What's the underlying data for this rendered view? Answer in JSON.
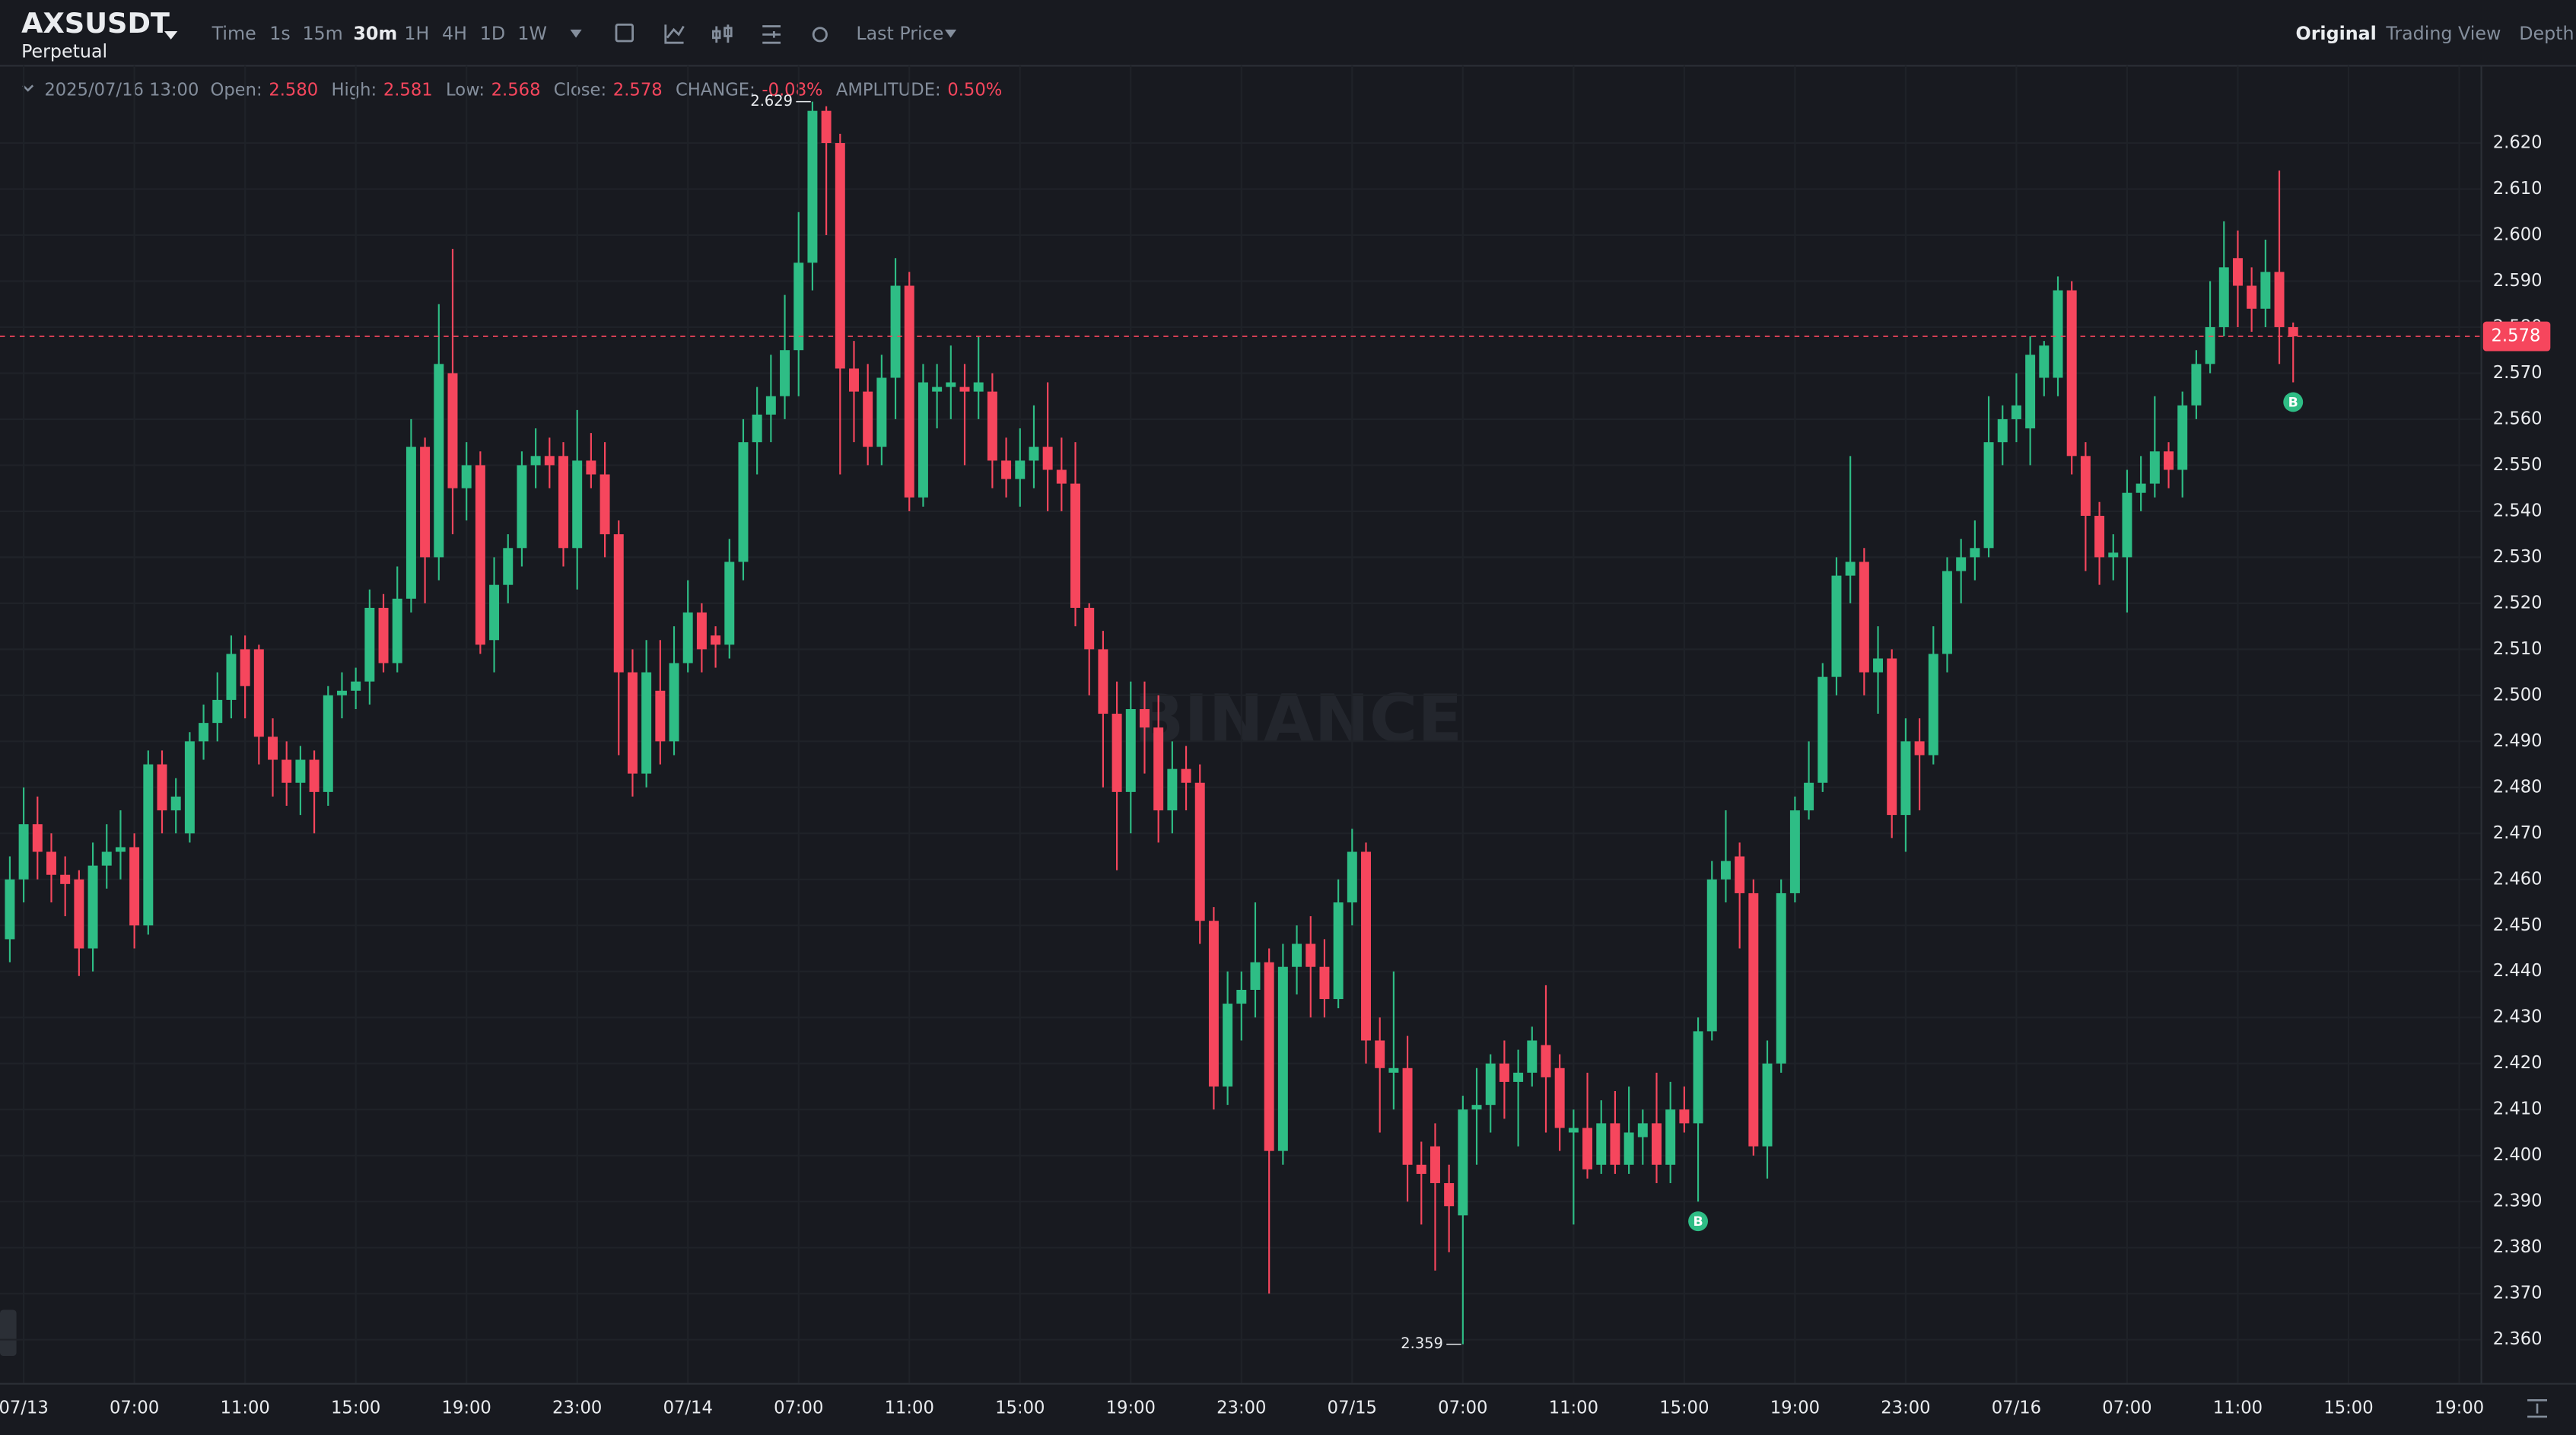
{
  "header": {
    "symbol": "AXSUSDT",
    "contract": "Perpetual",
    "intervals": [
      "Time",
      "1s",
      "15m",
      "30m",
      "1H",
      "4H",
      "1D",
      "1W"
    ],
    "price_type": "Last Price",
    "views": [
      "Original",
      "Trading View",
      "Depth"
    ]
  },
  "info": {
    "time": "2025/07/16 13:00",
    "fields": [
      {
        "label": "Open:",
        "value": "2.580"
      },
      {
        "label": "High:",
        "value": "2.581"
      },
      {
        "label": "Low:",
        "value": "2.568"
      },
      {
        "label": "Close:",
        "value": "2.578"
      },
      {
        "label": "CHANGE:",
        "value": "-0.08%"
      },
      {
        "label": "AMPLITUDE:",
        "value": "0.50%"
      }
    ]
  },
  "chart_data": {
    "type": "candlestick",
    "watermark": "BINANCE",
    "up_color": "#2ebd85",
    "down_color": "#f6465d",
    "grid": true,
    "open": [
      2.447,
      2.46,
      2.472,
      2.466,
      2.461,
      2.46,
      2.445,
      2.463,
      2.466,
      2.467,
      2.45,
      2.485,
      2.475,
      2.47,
      2.49,
      2.494,
      2.499,
      2.51,
      2.51,
      2.491,
      2.486,
      2.481,
      2.486,
      2.479,
      2.5,
      2.501,
      2.503,
      2.519,
      2.507,
      2.521,
      2.554,
      2.53,
      2.57,
      2.545,
      2.55,
      2.512,
      2.524,
      2.532,
      2.55,
      2.552,
      2.552,
      2.532,
      2.551,
      2.548,
      2.535,
      2.505,
      2.483,
      2.501,
      2.49,
      2.507,
      2.518,
      2.513,
      2.511,
      2.529,
      2.555,
      2.561,
      2.565,
      2.575,
      2.594,
      2.627,
      2.62,
      2.571,
      2.566,
      2.554,
      2.569,
      2.589,
      2.543,
      2.566,
      2.567,
      2.567,
      2.566,
      2.566,
      2.551,
      2.547,
      2.551,
      2.554,
      2.549,
      2.546,
      2.519,
      2.51,
      2.496,
      2.479,
      2.497,
      2.493,
      2.475,
      2.484,
      2.481,
      2.451,
      2.415,
      2.433,
      2.436,
      2.442,
      2.401,
      2.441,
      2.446,
      2.441,
      2.434,
      2.455,
      2.466,
      2.425,
      2.418,
      2.419,
      2.398,
      2.402,
      2.394,
      2.387,
      2.41,
      2.411,
      2.42,
      2.416,
      2.418,
      2.424,
      2.419,
      2.405,
      2.406,
      2.398,
      2.407,
      2.398,
      2.404,
      2.407,
      2.398,
      2.41,
      2.407,
      2.427,
      2.46,
      2.465,
      2.457,
      2.402,
      2.42,
      2.457,
      2.475,
      2.481,
      2.504,
      2.526,
      2.529,
      2.505,
      2.508,
      2.474,
      2.49,
      2.487,
      2.509,
      2.527,
      2.53,
      2.532,
      2.555,
      2.56,
      2.558,
      2.569,
      2.569,
      2.588,
      2.552,
      2.539,
      2.53,
      2.53,
      2.544,
      2.546,
      2.553,
      2.549,
      2.563,
      2.572,
      2.58,
      2.595,
      2.589,
      2.584,
      2.592,
      2.58
    ],
    "high": [
      2.465,
      2.48,
      2.478,
      2.47,
      2.465,
      2.462,
      2.468,
      2.472,
      2.475,
      2.47,
      2.488,
      2.488,
      2.482,
      2.492,
      2.498,
      2.505,
      2.513,
      2.513,
      2.511,
      2.495,
      2.49,
      2.489,
      2.488,
      2.502,
      2.505,
      2.506,
      2.523,
      2.522,
      2.528,
      2.56,
      2.556,
      2.585,
      2.597,
      2.555,
      2.553,
      2.53,
      2.535,
      2.553,
      2.558,
      2.556,
      2.555,
      2.562,
      2.557,
      2.555,
      2.538,
      2.51,
      2.512,
      2.512,
      2.515,
      2.525,
      2.52,
      2.515,
      2.534,
      2.56,
      2.567,
      2.574,
      2.587,
      2.605,
      2.629,
      2.628,
      2.622,
      2.577,
      2.572,
      2.574,
      2.595,
      2.592,
      2.572,
      2.572,
      2.576,
      2.572,
      2.578,
      2.57,
      2.556,
      2.558,
      2.563,
      2.568,
      2.556,
      2.555,
      2.52,
      2.514,
      2.503,
      2.503,
      2.503,
      2.5,
      2.49,
      2.489,
      2.485,
      2.454,
      2.44,
      2.44,
      2.455,
      2.445,
      2.446,
      2.45,
      2.452,
      2.447,
      2.46,
      2.471,
      2.468,
      2.43,
      2.44,
      2.426,
      2.403,
      2.407,
      2.398,
      2.413,
      2.419,
      2.422,
      2.425,
      2.423,
      2.428,
      2.437,
      2.422,
      2.41,
      2.418,
      2.412,
      2.414,
      2.415,
      2.41,
      2.418,
      2.416,
      2.415,
      2.43,
      2.464,
      2.475,
      2.468,
      2.46,
      2.425,
      2.46,
      2.478,
      2.49,
      2.507,
      2.53,
      2.552,
      2.532,
      2.515,
      2.51,
      2.495,
      2.495,
      2.515,
      2.53,
      2.534,
      2.538,
      2.565,
      2.563,
      2.57,
      2.578,
      2.577,
      2.591,
      2.59,
      2.555,
      2.542,
      2.535,
      2.549,
      2.552,
      2.565,
      2.555,
      2.566,
      2.575,
      2.59,
      2.603,
      2.601,
      2.593,
      2.599,
      2.614,
      2.581
    ],
    "low": [
      2.442,
      2.455,
      2.46,
      2.455,
      2.452,
      2.439,
      2.44,
      2.458,
      2.46,
      2.445,
      2.448,
      2.47,
      2.47,
      2.468,
      2.486,
      2.49,
      2.495,
      2.495,
      2.485,
      2.478,
      2.476,
      2.474,
      2.47,
      2.476,
      2.495,
      2.497,
      2.498,
      2.505,
      2.505,
      2.518,
      2.52,
      2.525,
      2.535,
      2.538,
      2.509,
      2.505,
      2.52,
      2.528,
      2.545,
      2.545,
      2.528,
      2.523,
      2.545,
      2.53,
      2.487,
      2.478,
      2.48,
      2.485,
      2.487,
      2.505,
      2.505,
      2.506,
      2.508,
      2.525,
      2.548,
      2.555,
      2.56,
      2.565,
      2.588,
      2.6,
      2.548,
      2.555,
      2.55,
      2.55,
      2.56,
      2.54,
      2.541,
      2.558,
      2.56,
      2.55,
      2.56,
      2.545,
      2.543,
      2.541,
      2.545,
      2.54,
      2.54,
      2.515,
      2.5,
      2.48,
      2.462,
      2.47,
      2.483,
      2.468,
      2.47,
      2.475,
      2.446,
      2.41,
      2.411,
      2.425,
      2.43,
      2.37,
      2.398,
      2.435,
      2.43,
      2.43,
      2.432,
      2.45,
      2.42,
      2.405,
      2.41,
      2.39,
      2.385,
      2.375,
      2.379,
      2.359,
      2.398,
      2.405,
      2.408,
      2.402,
      2.415,
      2.405,
      2.401,
      2.385,
      2.395,
      2.396,
      2.396,
      2.396,
      2.398,
      2.394,
      2.394,
      2.405,
      2.39,
      2.425,
      2.455,
      2.445,
      2.4,
      2.395,
      2.418,
      2.455,
      2.473,
      2.479,
      2.5,
      2.52,
      2.5,
      2.496,
      2.469,
      2.466,
      2.475,
      2.485,
      2.505,
      2.52,
      2.525,
      2.53,
      2.55,
      2.555,
      2.55,
      2.565,
      2.565,
      2.548,
      2.527,
      2.524,
      2.525,
      2.518,
      2.54,
      2.543,
      2.545,
      2.543,
      2.56,
      2.57,
      2.578,
      2.58,
      2.579,
      2.58,
      2.572,
      2.568
    ],
    "close": [
      2.46,
      2.472,
      2.466,
      2.461,
      2.459,
      2.445,
      2.463,
      2.466,
      2.467,
      2.45,
      2.485,
      2.475,
      2.478,
      2.49,
      2.494,
      2.499,
      2.509,
      2.502,
      2.491,
      2.486,
      2.481,
      2.486,
      2.479,
      2.5,
      2.501,
      2.503,
      2.519,
      2.507,
      2.521,
      2.554,
      2.53,
      2.572,
      2.545,
      2.55,
      2.511,
      2.524,
      2.532,
      2.55,
      2.552,
      2.55,
      2.532,
      2.551,
      2.548,
      2.535,
      2.505,
      2.483,
      2.505,
      2.49,
      2.507,
      2.518,
      2.51,
      2.511,
      2.529,
      2.555,
      2.561,
      2.565,
      2.575,
      2.594,
      2.627,
      2.62,
      2.571,
      2.566,
      2.554,
      2.569,
      2.589,
      2.543,
      2.568,
      2.567,
      2.568,
      2.566,
      2.568,
      2.551,
      2.547,
      2.551,
      2.554,
      2.549,
      2.546,
      2.519,
      2.51,
      2.496,
      2.479,
      2.497,
      2.493,
      2.475,
      2.484,
      2.481,
      2.451,
      2.415,
      2.433,
      2.436,
      2.442,
      2.401,
      2.441,
      2.446,
      2.441,
      2.434,
      2.455,
      2.466,
      2.425,
      2.419,
      2.419,
      2.398,
      2.396,
      2.394,
      2.389,
      2.41,
      2.411,
      2.42,
      2.416,
      2.418,
      2.425,
      2.417,
      2.406,
      2.406,
      2.397,
      2.407,
      2.398,
      2.405,
      2.407,
      2.398,
      2.41,
      2.407,
      2.427,
      2.46,
      2.464,
      2.457,
      2.402,
      2.42,
      2.457,
      2.475,
      2.481,
      2.504,
      2.526,
      2.529,
      2.505,
      2.508,
      2.474,
      2.49,
      2.487,
      2.509,
      2.527,
      2.53,
      2.532,
      2.555,
      2.56,
      2.563,
      2.574,
      2.576,
      2.588,
      2.552,
      2.539,
      2.53,
      2.531,
      2.544,
      2.546,
      2.553,
      2.549,
      2.563,
      2.572,
      2.58,
      2.593,
      2.589,
      2.584,
      2.592,
      2.58,
      2.578
    ],
    "xlim": [
      -0.71,
      178.6
    ],
    "xticks": [
      {
        "value": 1,
        "label": "07/13"
      },
      {
        "value": 9,
        "label": "07:00"
      },
      {
        "value": 17,
        "label": "11:00"
      },
      {
        "value": 25,
        "label": "15:00"
      },
      {
        "value": 33,
        "label": "19:00"
      },
      {
        "value": 41,
        "label": "23:00"
      },
      {
        "value": 49,
        "label": "07/14"
      },
      {
        "value": 57,
        "label": "07:00"
      },
      {
        "value": 65,
        "label": "11:00"
      },
      {
        "value": 73,
        "label": "15:00"
      },
      {
        "value": 81,
        "label": "19:00"
      },
      {
        "value": 89,
        "label": "23:00"
      },
      {
        "value": 97,
        "label": "07/15"
      },
      {
        "value": 105,
        "label": "07:00"
      },
      {
        "value": 113,
        "label": "11:00"
      },
      {
        "value": 121,
        "label": "15:00"
      },
      {
        "value": 129,
        "label": "19:00"
      },
      {
        "value": 137,
        "label": "23:00"
      },
      {
        "value": 145,
        "label": "07/16"
      },
      {
        "value": 153,
        "label": "07:00"
      },
      {
        "value": 161,
        "label": "11:00"
      },
      {
        "value": 169,
        "label": "15:00"
      },
      {
        "value": 177,
        "label": "19:00"
      }
    ],
    "ylim": [
      2.3504,
      2.6368
    ],
    "yticks": [
      {
        "value": 2.36,
        "label": "2.360"
      },
      {
        "value": 2.37,
        "label": "2.370"
      },
      {
        "value": 2.38,
        "label": "2.380"
      },
      {
        "value": 2.39,
        "label": "2.390"
      },
      {
        "value": 2.4,
        "label": "2.400"
      },
      {
        "value": 2.41,
        "label": "2.410"
      },
      {
        "value": 2.42,
        "label": "2.420"
      },
      {
        "value": 2.43,
        "label": "2.430"
      },
      {
        "value": 2.44,
        "label": "2.440"
      },
      {
        "value": 2.45,
        "label": "2.450"
      },
      {
        "value": 2.46,
        "label": "2.460"
      },
      {
        "value": 2.47,
        "label": "2.470"
      },
      {
        "value": 2.48,
        "label": "2.480"
      },
      {
        "value": 2.49,
        "label": "2.490"
      },
      {
        "value": 2.5,
        "label": "2.500"
      },
      {
        "value": 2.51,
        "label": "2.510"
      },
      {
        "value": 2.52,
        "label": "2.520"
      },
      {
        "value": 2.53,
        "label": "2.530"
      },
      {
        "value": 2.54,
        "label": "2.540"
      },
      {
        "value": 2.55,
        "label": "2.550"
      },
      {
        "value": 2.56,
        "label": "2.560"
      },
      {
        "value": 2.57,
        "label": "2.570"
      },
      {
        "value": 2.58,
        "label": "2.580"
      },
      {
        "value": 2.59,
        "label": "2.590"
      },
      {
        "value": 2.6,
        "label": "2.600"
      },
      {
        "value": 2.61,
        "label": "2.610"
      },
      {
        "value": 2.62,
        "label": "2.620"
      }
    ],
    "last_price": 2.578,
    "high_label": {
      "index": 58,
      "value": 2.629
    },
    "low_label": {
      "index": 105,
      "value": 2.359
    },
    "markers": [
      {
        "index": 122,
        "label": "B"
      },
      {
        "index": 165,
        "label": "B"
      }
    ]
  }
}
